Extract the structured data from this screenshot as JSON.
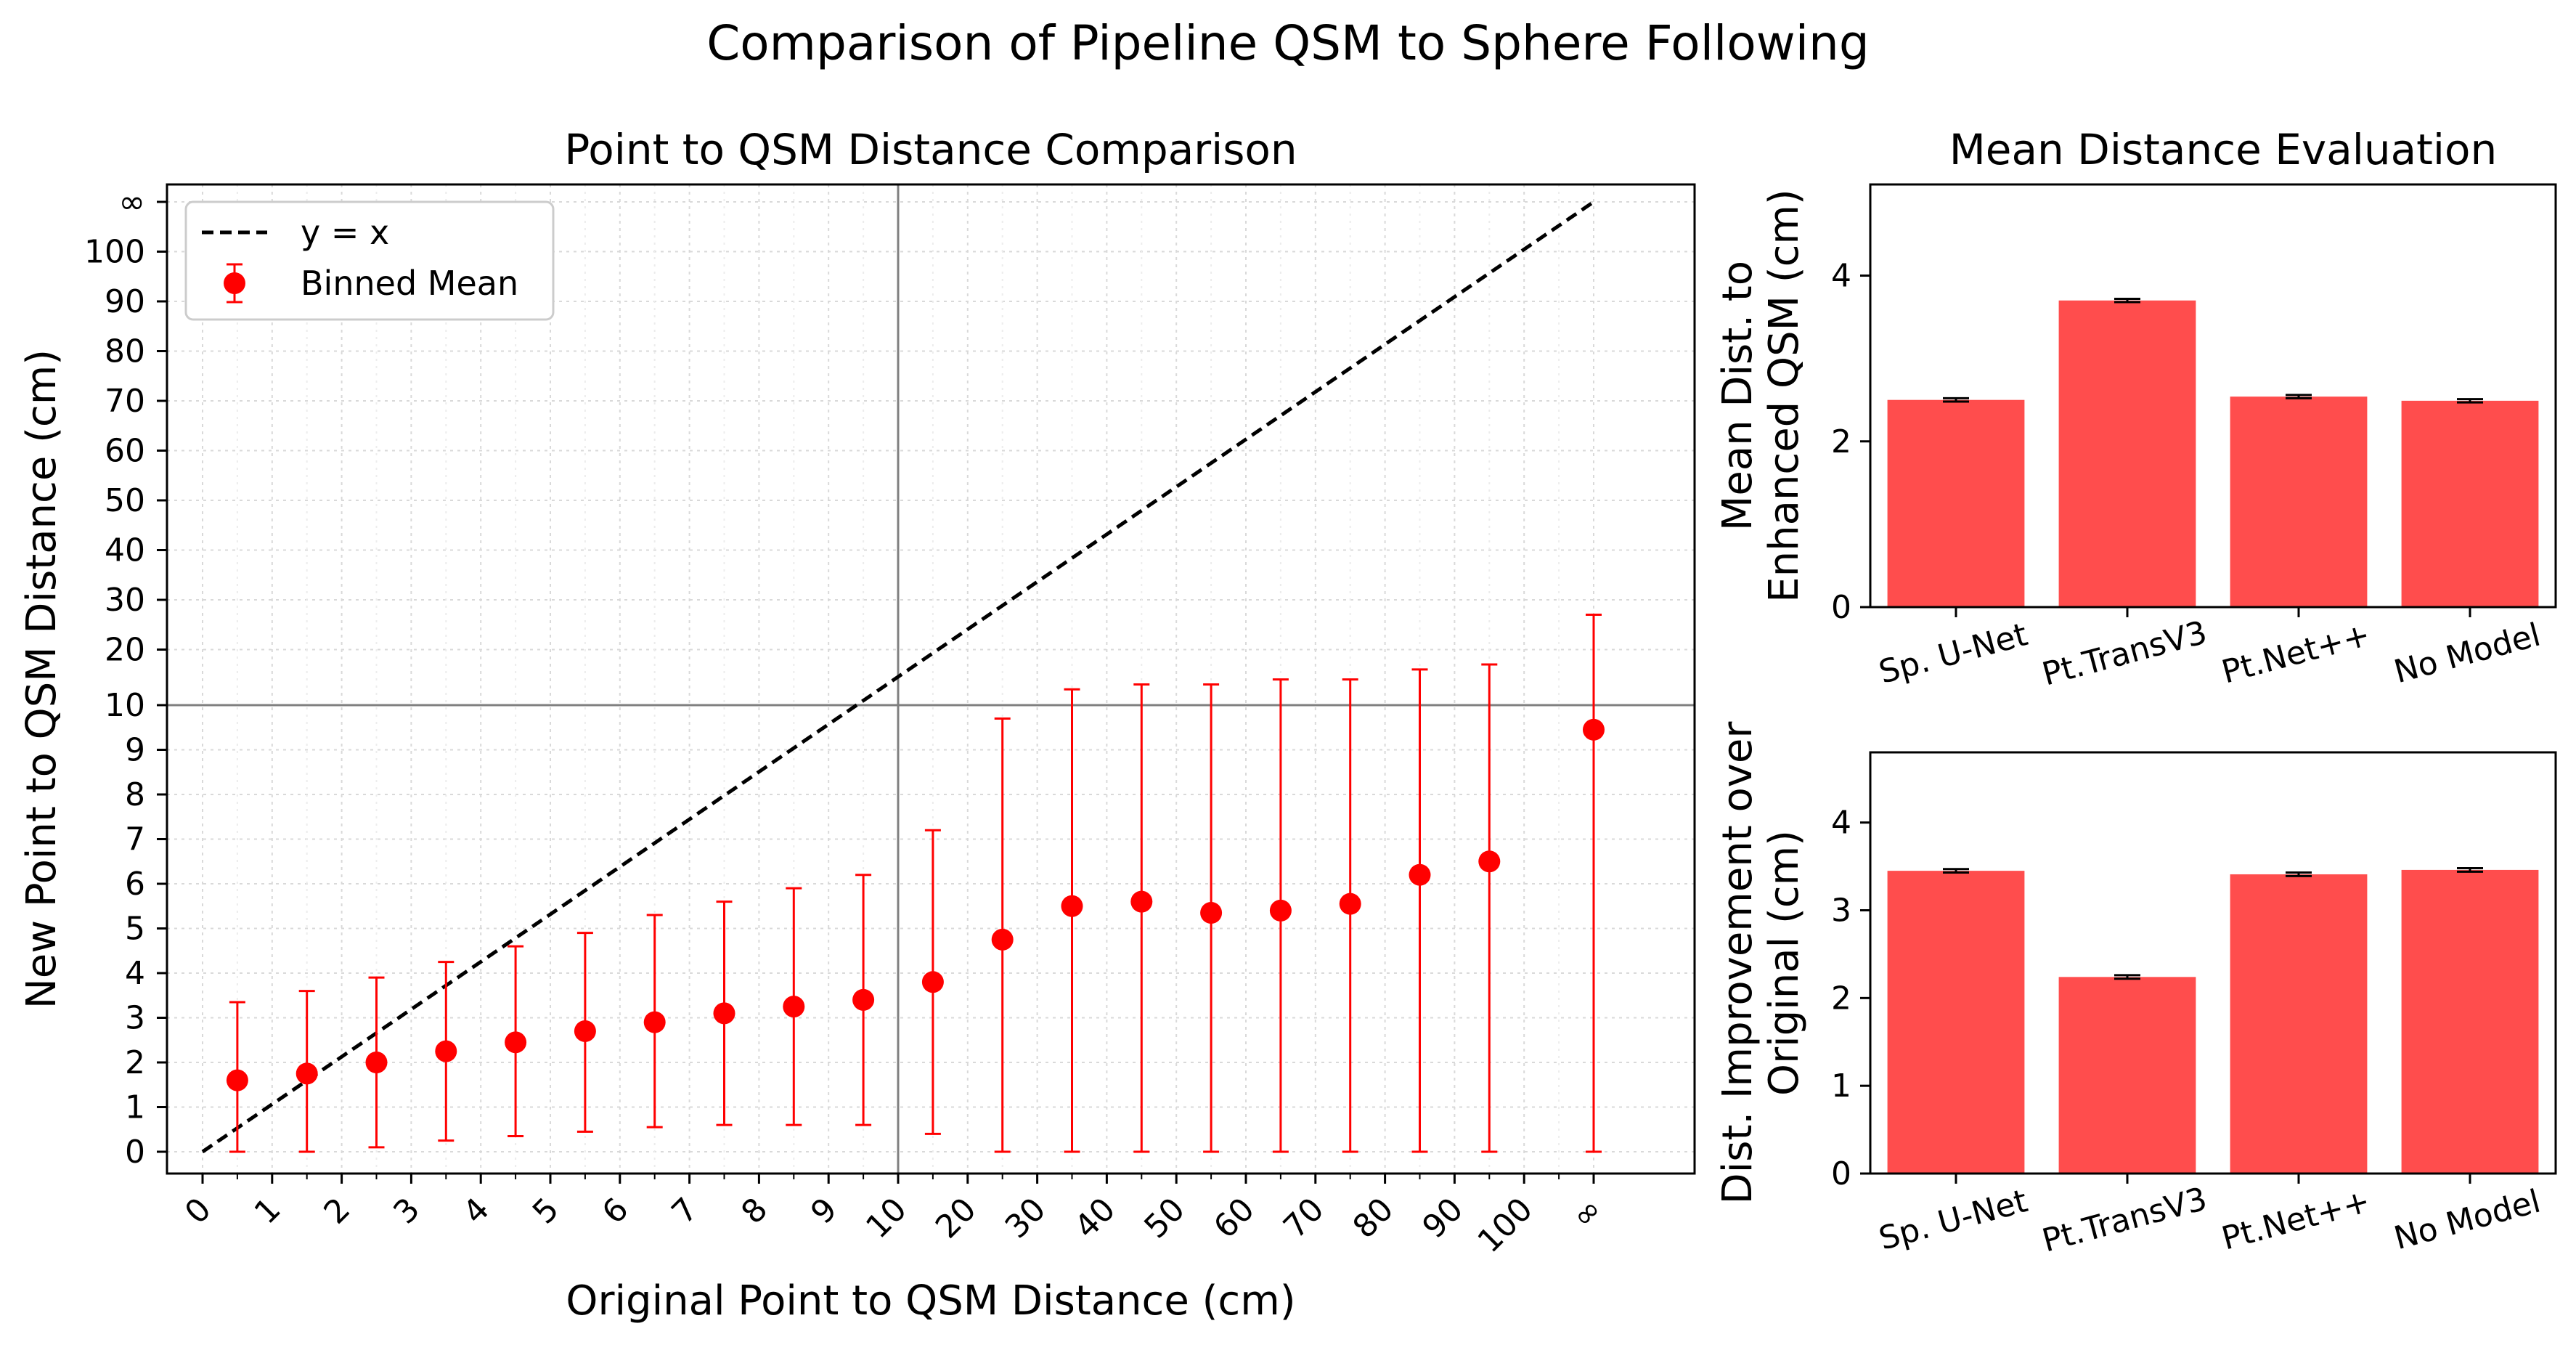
{
  "suptitle": "Comparison of Pipeline QSM to Sphere Following",
  "chart_data": [
    {
      "type": "scatter",
      "title": "Point to QSM Distance Comparison",
      "xlabel": "Original Point to QSM Distance (cm)",
      "ylabel": "New Point to QSM Distance (cm)",
      "scale": "piecewise: linear 0-10, then 10-unit steps 10-100, then ∞",
      "tick_labels": [
        "0",
        "1",
        "2",
        "3",
        "4",
        "5",
        "6",
        "7",
        "8",
        "9",
        "10",
        "20",
        "30",
        "40",
        "50",
        "60",
        "70",
        "80",
        "90",
        "100",
        "∞"
      ],
      "grid": true,
      "legend": "top-left",
      "legend_entries": [
        "y = x",
        "Binned Mean"
      ],
      "reference_lines": {
        "x": "10",
        "y": "10"
      },
      "series": [
        {
          "name": "y = x",
          "style": "dashed",
          "color": "#000000",
          "x": [
            "0",
            "∞"
          ],
          "y": [
            "0",
            "∞"
          ]
        },
        {
          "name": "Binned Mean",
          "color": "#ff0000",
          "x": [
            "0.5",
            "1.5",
            "2.5",
            "3.5",
            "4.5",
            "5.5",
            "6.5",
            "7.5",
            "8.5",
            "9.5",
            "15",
            "25",
            "35",
            "45",
            "55",
            "65",
            "75",
            "85",
            "95",
            "∞"
          ],
          "y": [
            1.6,
            1.75,
            2.0,
            2.25,
            2.45,
            2.7,
            2.9,
            3.1,
            3.25,
            3.4,
            3.8,
            4.75,
            5.5,
            5.6,
            5.35,
            5.4,
            5.55,
            6.2,
            6.5,
            9.45
          ],
          "err_low": [
            0.0,
            0.0,
            0.1,
            0.25,
            0.35,
            0.45,
            0.55,
            0.6,
            0.6,
            0.6,
            0.4,
            0.0,
            0.0,
            0.0,
            0.0,
            0.0,
            0.0,
            0.0,
            0.0,
            0.0
          ],
          "err_high": [
            3.35,
            3.6,
            3.9,
            4.25,
            4.6,
            4.9,
            5.3,
            5.6,
            5.9,
            6.2,
            7.2,
            9.7,
            12,
            13,
            13,
            14,
            14,
            16,
            17,
            27
          ]
        }
      ]
    },
    {
      "type": "bar",
      "title": "Mean Distance Evaluation",
      "xlabel": "",
      "ylabel": [
        "Mean Dist. to",
        "Enhanced QSM (cm)"
      ],
      "categories": [
        "Sp. U-Net",
        "Pt.TransV3",
        "Pt.Net++",
        "No Model"
      ],
      "values": [
        2.5,
        3.7,
        2.54,
        2.49
      ],
      "errors": [
        0.02,
        0.02,
        0.02,
        0.02
      ],
      "ylim": [
        0,
        5.1
      ],
      "yticks": [
        0,
        2,
        4
      ],
      "color": "#ff4d4d"
    },
    {
      "type": "bar",
      "title": "",
      "xlabel": "",
      "ylabel": [
        "Dist. Improvement over",
        "Original (cm)"
      ],
      "categories": [
        "Sp. U-Net",
        "Pt.TransV3",
        "Pt.Net++",
        "No Model"
      ],
      "values": [
        3.45,
        2.24,
        3.41,
        3.46
      ],
      "errors": [
        0.02,
        0.02,
        0.02,
        0.02
      ],
      "ylim": [
        0,
        4.8
      ],
      "yticks": [
        0,
        1,
        2,
        3,
        4
      ],
      "color": "#ff4d4d"
    }
  ]
}
